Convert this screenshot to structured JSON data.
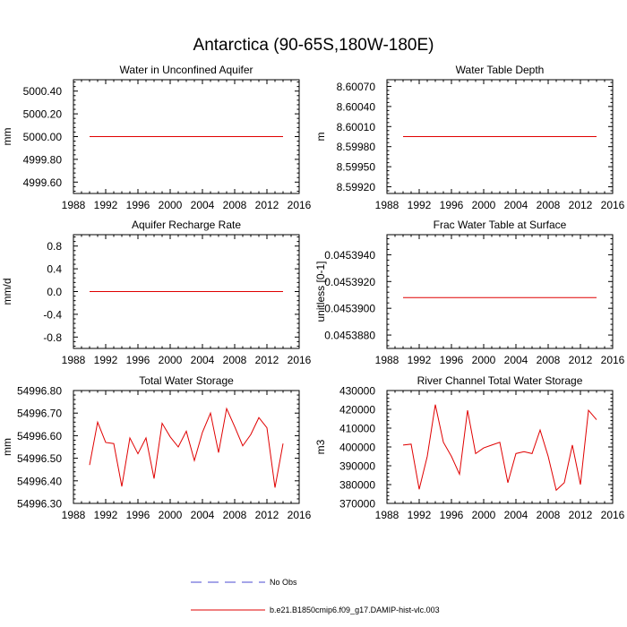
{
  "title": "Antarctica (90-65S,180W-180E)",
  "legend": {
    "obs_label": "No Obs",
    "model_label": "b.e21.B1850cmip6.f09_g17.DAMIP-hist-vlc.003",
    "obs_color": "#4b4bd1",
    "model_color": "#e00000"
  },
  "chart_data": [
    {
      "type": "line",
      "title": "Water in Unconfined Aquifer",
      "xlabel": "",
      "ylabel": "mm",
      "xlim": [
        1988,
        2016
      ],
      "xticks": [
        "1988",
        "1992",
        "1996",
        "2000",
        "2004",
        "2008",
        "2012",
        "2016"
      ],
      "ylim": [
        4999.5,
        5000.5
      ],
      "yticks": [
        "4999.60",
        "4999.80",
        "5000.00",
        "5000.20",
        "5000.40"
      ],
      "grid": false,
      "series": [
        {
          "color": "#e00000",
          "x": [
            1990,
            1991,
            1992,
            1993,
            1994,
            1995,
            1996,
            1997,
            1998,
            1999,
            2000,
            2001,
            2002,
            2003,
            2004,
            2005,
            2006,
            2007,
            2008,
            2009,
            2010,
            2011,
            2012,
            2013,
            2014
          ],
          "y": [
            5000,
            5000,
            5000,
            5000,
            5000,
            5000,
            5000,
            5000,
            5000,
            5000,
            5000,
            5000,
            5000,
            5000,
            5000,
            5000,
            5000,
            5000,
            5000,
            5000,
            5000,
            5000,
            5000,
            5000,
            5000
          ]
        }
      ]
    },
    {
      "type": "line",
      "title": "Water Table Depth",
      "xlabel": "",
      "ylabel": "m",
      "xlim": [
        1988,
        2016
      ],
      "xticks": [
        "1988",
        "1992",
        "1996",
        "2000",
        "2004",
        "2008",
        "2012",
        "2016"
      ],
      "ylim": [
        8.5991,
        8.6008
      ],
      "yticks": [
        "8.59920",
        "8.59950",
        "8.59980",
        "8.60010",
        "8.60040",
        "8.60070"
      ],
      "grid": false,
      "series": [
        {
          "color": "#e00000",
          "x": [
            1990,
            1991,
            1992,
            1993,
            1994,
            1995,
            1996,
            1997,
            1998,
            1999,
            2000,
            2001,
            2002,
            2003,
            2004,
            2005,
            2006,
            2007,
            2008,
            2009,
            2010,
            2011,
            2012,
            2013,
            2014
          ],
          "y": [
            8.59995,
            8.59995,
            8.59995,
            8.59995,
            8.59995,
            8.59995,
            8.59995,
            8.59995,
            8.59995,
            8.59995,
            8.59995,
            8.59995,
            8.59995,
            8.59995,
            8.59995,
            8.59995,
            8.59995,
            8.59995,
            8.59995,
            8.59995,
            8.59995,
            8.59995,
            8.59995,
            8.59995,
            8.59995
          ]
        }
      ]
    },
    {
      "type": "line",
      "title": "Aquifer Recharge Rate",
      "xlabel": "",
      "ylabel": "mm/d",
      "xlim": [
        1988,
        2016
      ],
      "xticks": [
        "1988",
        "1992",
        "1996",
        "2000",
        "2004",
        "2008",
        "2012",
        "2016"
      ],
      "ylim": [
        -1,
        1
      ],
      "yticks": [
        "-0.8",
        "-0.4",
        "0.0",
        "0.4",
        "0.8"
      ],
      "grid": false,
      "series": [
        {
          "color": "#e00000",
          "x": [
            1990,
            1991,
            1992,
            1993,
            1994,
            1995,
            1996,
            1997,
            1998,
            1999,
            2000,
            2001,
            2002,
            2003,
            2004,
            2005,
            2006,
            2007,
            2008,
            2009,
            2010,
            2011,
            2012,
            2013,
            2014
          ],
          "y": [
            0,
            0,
            0,
            0,
            0,
            0,
            0,
            0,
            0,
            0,
            0,
            0,
            0,
            0,
            0,
            0,
            0,
            0,
            0,
            0,
            0,
            0,
            0,
            0,
            0
          ]
        }
      ]
    },
    {
      "type": "line",
      "title": "Frac Water Table at Surface",
      "xlabel": "",
      "ylabel": "unitless [0-1]",
      "xlim": [
        1988,
        2016
      ],
      "xticks": [
        "1988",
        "1992",
        "1996",
        "2000",
        "2004",
        "2008",
        "2012",
        "2016"
      ],
      "ylim": [
        0.045387,
        0.0453955
      ],
      "yticks": [
        "0.0453880",
        "0.0453900",
        "0.0453920",
        "0.0453940"
      ],
      "grid": false,
      "series": [
        {
          "color": "#e00000",
          "x": [
            1990,
            1991,
            1992,
            1993,
            1994,
            1995,
            1996,
            1997,
            1998,
            1999,
            2000,
            2001,
            2002,
            2003,
            2004,
            2005,
            2006,
            2007,
            2008,
            2009,
            2010,
            2011,
            2012,
            2013,
            2014
          ],
          "y": [
            0.0453908,
            0.0453908,
            0.0453908,
            0.0453908,
            0.0453908,
            0.0453908,
            0.0453908,
            0.0453908,
            0.0453908,
            0.0453908,
            0.0453908,
            0.0453908,
            0.0453908,
            0.0453908,
            0.0453908,
            0.0453908,
            0.0453908,
            0.0453908,
            0.0453908,
            0.0453908,
            0.0453908,
            0.0453908,
            0.0453908,
            0.0453908,
            0.0453908
          ]
        }
      ]
    },
    {
      "type": "line",
      "title": "Total Water Storage",
      "xlabel": "",
      "ylabel": "mm",
      "xlim": [
        1988,
        2016
      ],
      "xticks": [
        "1988",
        "1992",
        "1996",
        "2000",
        "2004",
        "2008",
        "2012",
        "2016"
      ],
      "ylim": [
        54996.3,
        54996.8
      ],
      "yticks": [
        "54996.30",
        "54996.40",
        "54996.50",
        "54996.60",
        "54996.70",
        "54996.80"
      ],
      "grid": false,
      "series": [
        {
          "color": "#e00000",
          "x": [
            1990,
            1991,
            1992,
            1993,
            1994,
            1995,
            1996,
            1997,
            1998,
            1999,
            2000,
            2001,
            2002,
            2003,
            2004,
            2005,
            2006,
            2007,
            2008,
            2009,
            2010,
            2011,
            2012,
            2013,
            2014
          ],
          "y": [
            54996.47,
            54996.66,
            54996.57,
            54996.565,
            54996.375,
            54996.59,
            54996.52,
            54996.59,
            54996.41,
            54996.655,
            54996.595,
            54996.55,
            54996.62,
            54996.49,
            54996.615,
            54996.7,
            54996.525,
            54996.72,
            54996.64,
            54996.555,
            54996.605,
            54996.68,
            54996.635,
            54996.37,
            54996.565
          ]
        }
      ]
    },
    {
      "type": "line",
      "title": "River Channel Total Water Storage",
      "xlabel": "",
      "ylabel": "m3",
      "xlim": [
        1988,
        2016
      ],
      "xticks": [
        "1988",
        "1992",
        "1996",
        "2000",
        "2004",
        "2008",
        "2012",
        "2016"
      ],
      "ylim": [
        370000,
        430000
      ],
      "yticks": [
        "370000",
        "380000",
        "390000",
        "400000",
        "410000",
        "420000",
        "430000"
      ],
      "grid": false,
      "series": [
        {
          "color": "#e00000",
          "x": [
            1990,
            1991,
            1992,
            1993,
            1994,
            1995,
            1996,
            1997,
            1998,
            1999,
            2000,
            2001,
            2002,
            2003,
            2004,
            2005,
            2006,
            2007,
            2008,
            2009,
            2010,
            2011,
            2012,
            2013,
            2014
          ],
          "y": [
            401000,
            401500,
            377500,
            395000,
            422500,
            402500,
            395000,
            385500,
            419500,
            396500,
            399500,
            401000,
            402500,
            381000,
            396500,
            397500,
            396500,
            409000,
            395000,
            377000,
            381000,
            401000,
            380000,
            419500,
            414500
          ]
        }
      ]
    }
  ]
}
